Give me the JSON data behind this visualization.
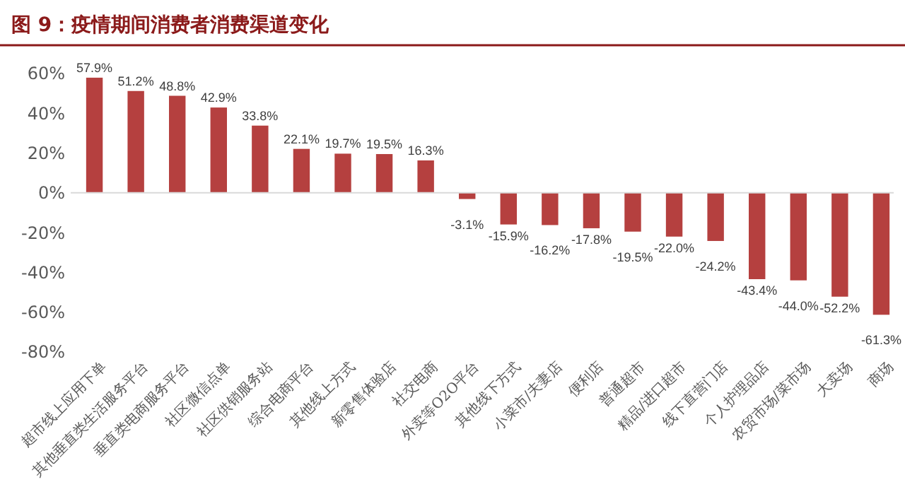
{
  "chart_data": {
    "type": "bar",
    "title": "图 9：疫情期间消费者消费渠道变化",
    "categories": [
      "超市线上应用下单",
      "其他垂直类生活服务平台",
      "垂直类电商服务平台",
      "社区微信点单",
      "社区供销服务站",
      "综合电商平台",
      "其他线上方式",
      "新零售体验店",
      "社交电商",
      "外卖等O2O平台",
      "其他线下方式",
      "小菜市/夫妻店",
      "便利店",
      "普通超市",
      "精品/进口超市",
      "线下直营门店",
      "个人护理品店",
      "农贸市场/菜市场",
      "大卖场",
      "商场"
    ],
    "values": [
      57.9,
      51.2,
      48.8,
      42.9,
      33.8,
      22.1,
      19.7,
      19.5,
      16.3,
      -3.1,
      -15.9,
      -16.2,
      -17.8,
      -19.5,
      -22.0,
      -24.2,
      -43.4,
      -44.0,
      -52.2,
      -61.3
    ],
    "value_labels": [
      "57.9%",
      "51.2%",
      "48.8%",
      "42.9%",
      "33.8%",
      "22.1%",
      "19.7%",
      "19.5%",
      "16.3%",
      "-3.1%",
      "-15.9%",
      "-16.2%",
      "-17.8%",
      "-19.5%",
      "-22.0%",
      "-24.2%",
      "-43.4%",
      "-44.0%",
      "-52.2%",
      "-61.3%"
    ],
    "color": "#b5403f",
    "ylim": [
      -80,
      60
    ],
    "yticks": [
      {
        "value": -80,
        "label": "-80%"
      },
      {
        "value": -60,
        "label": "-60%"
      },
      {
        "value": -40,
        "label": "-40%"
      },
      {
        "value": -20,
        "label": "-20%"
      },
      {
        "value": 0,
        "label": "0%"
      },
      {
        "value": 20,
        "label": "20%"
      },
      {
        "value": 40,
        "label": "40%"
      },
      {
        "value": 60,
        "label": "60%"
      }
    ]
  }
}
